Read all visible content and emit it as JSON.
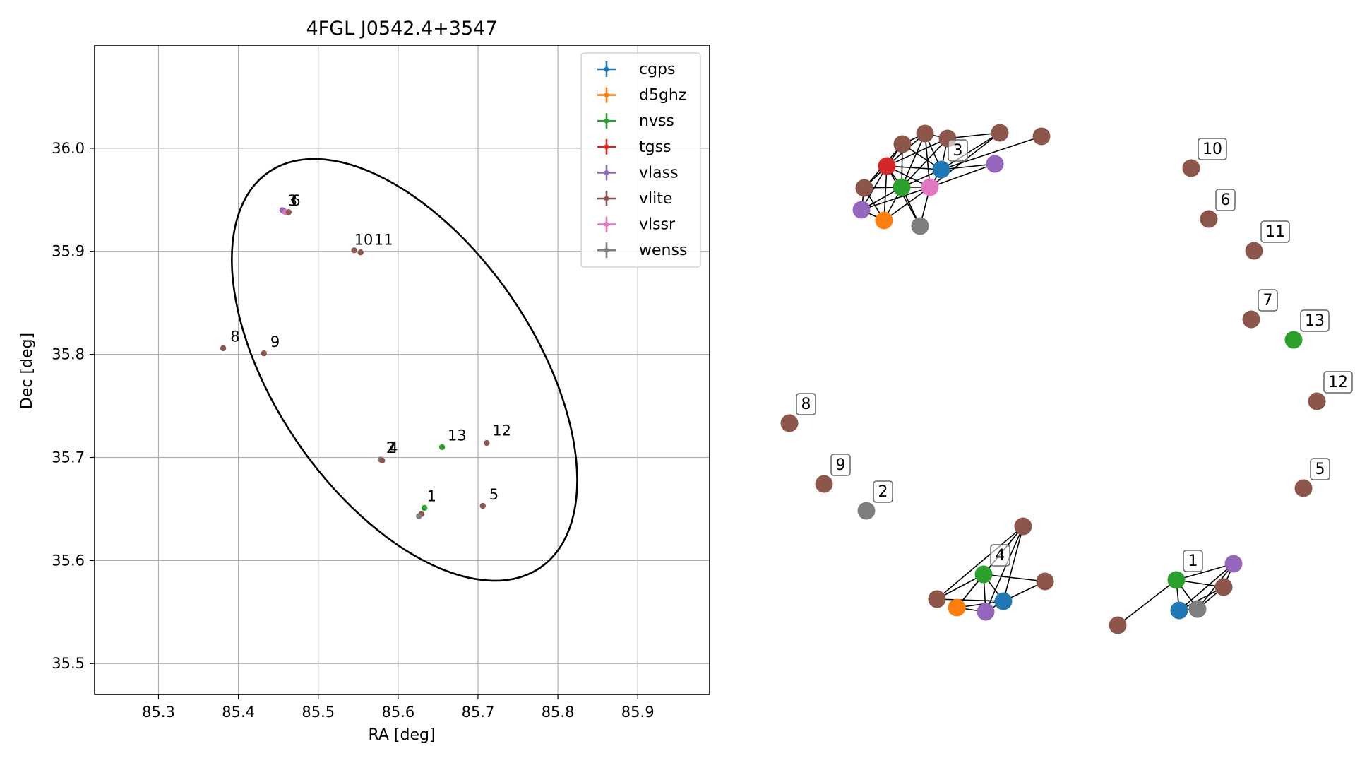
{
  "chart_data": [
    {
      "type": "scatter",
      "title": "4FGL J0542.4+3547",
      "xlabel": "RA [deg]",
      "ylabel": "Dec [deg]",
      "xlim": [
        85.22,
        85.99
      ],
      "ylim": [
        35.47,
        36.1
      ],
      "xticks": [
        "85.3",
        "85.4",
        "85.5",
        "85.6",
        "85.7",
        "85.8",
        "85.9"
      ],
      "yticks": [
        "35.5",
        "35.6",
        "35.7",
        "35.8",
        "35.9",
        "36.0"
      ],
      "grid": true,
      "legend_position": "top-right",
      "legend": [
        {
          "label": "cgps",
          "color": "#1f77b4"
        },
        {
          "label": "d5ghz",
          "color": "#ff7f0e"
        },
        {
          "label": "nvss",
          "color": "#2ca02c"
        },
        {
          "label": "tgss",
          "color": "#d62728"
        },
        {
          "label": "vlass",
          "color": "#9467bd"
        },
        {
          "label": "vlite",
          "color": "#8c564b"
        },
        {
          "label": "vlssr",
          "color": "#e377c2"
        },
        {
          "label": "wenss",
          "color": "#7f7f7f"
        }
      ],
      "ellipse": {
        "center": [
          85.608,
          35.785
        ],
        "semi_axes": [
          0.26,
          0.145
        ],
        "angle_deg": -42
      },
      "points": [
        {
          "x": 85.457,
          "y": 35.939,
          "c": "#8c564b"
        },
        {
          "x": 85.455,
          "y": 35.94,
          "c": "#9467bd"
        },
        {
          "x": 85.459,
          "y": 35.938,
          "c": "#e377c2"
        },
        {
          "x": 85.463,
          "y": 35.938,
          "c": "#8c564b"
        },
        {
          "x": 85.545,
          "y": 35.901,
          "c": "#8c564b"
        },
        {
          "x": 85.553,
          "y": 35.899,
          "c": "#8c564b"
        },
        {
          "x": 85.381,
          "y": 35.806,
          "c": "#8c564b"
        },
        {
          "x": 85.432,
          "y": 35.801,
          "c": "#8c564b"
        },
        {
          "x": 85.578,
          "y": 35.698,
          "c": "#7f7f7f"
        },
        {
          "x": 85.58,
          "y": 35.697,
          "c": "#8c564b"
        },
        {
          "x": 85.655,
          "y": 35.71,
          "c": "#2ca02c"
        },
        {
          "x": 85.711,
          "y": 35.714,
          "c": "#8c564b"
        },
        {
          "x": 85.633,
          "y": 35.651,
          "c": "#2ca02c"
        },
        {
          "x": 85.629,
          "y": 35.645,
          "c": "#8c564b"
        },
        {
          "x": 85.626,
          "y": 35.643,
          "c": "#7f7f7f"
        },
        {
          "x": 85.706,
          "y": 35.653,
          "c": "#8c564b"
        }
      ],
      "labels": [
        {
          "text": "3",
          "x": 85.462,
          "y": 35.943
        },
        {
          "text": "6",
          "x": 85.466,
          "y": 35.943
        },
        {
          "text": "10",
          "x": 85.545,
          "y": 35.905
        },
        {
          "text": "11",
          "x": 85.57,
          "y": 35.905
        },
        {
          "text": "8",
          "x": 85.39,
          "y": 35.811
        },
        {
          "text": "9",
          "x": 85.44,
          "y": 35.806
        },
        {
          "text": "2",
          "x": 85.585,
          "y": 35.703
        },
        {
          "text": "4",
          "x": 85.588,
          "y": 35.703
        },
        {
          "text": "13",
          "x": 85.662,
          "y": 35.715
        },
        {
          "text": "12",
          "x": 85.718,
          "y": 35.72
        },
        {
          "text": "1",
          "x": 85.636,
          "y": 35.656
        },
        {
          "text": "5",
          "x": 85.714,
          "y": 35.658
        }
      ]
    },
    {
      "type": "network",
      "nodes": [
        {
          "id": "a1",
          "c": "#8c564b"
        },
        {
          "id": "a2",
          "c": "#8c564b"
        },
        {
          "id": "a3",
          "c": "#8c564b"
        },
        {
          "id": "a4",
          "c": "#8c564b"
        },
        {
          "id": "a5",
          "c": "#8c564b"
        },
        {
          "id": "a6",
          "c": "#d62728"
        },
        {
          "id": "a7",
          "c": "#1f77b4",
          "label": "3"
        },
        {
          "id": "a8",
          "c": "#9467bd"
        },
        {
          "id": "a9",
          "c": "#8c564b"
        },
        {
          "id": "a10",
          "c": "#2ca02c"
        },
        {
          "id": "a11",
          "c": "#e377c2"
        },
        {
          "id": "a12",
          "c": "#9467bd"
        },
        {
          "id": "a13",
          "c": "#ff7f0e"
        },
        {
          "id": "a14",
          "c": "#7f7f7f"
        },
        {
          "id": "n10",
          "c": "#8c564b",
          "label": "10"
        },
        {
          "id": "n6",
          "c": "#8c564b",
          "label": "6"
        },
        {
          "id": "n11",
          "c": "#8c564b",
          "label": "11"
        },
        {
          "id": "n7",
          "c": "#8c564b",
          "label": "7"
        },
        {
          "id": "n13",
          "c": "#2ca02c",
          "label": "13"
        },
        {
          "id": "n12",
          "c": "#8c564b",
          "label": "12"
        },
        {
          "id": "n5",
          "c": "#8c564b",
          "label": "5"
        },
        {
          "id": "n8",
          "c": "#8c564b",
          "label": "8"
        },
        {
          "id": "n9",
          "c": "#8c564b",
          "label": "9"
        },
        {
          "id": "n2",
          "c": "#7f7f7f",
          "label": "2"
        },
        {
          "id": "b1",
          "c": "#8c564b"
        },
        {
          "id": "b2",
          "c": "#2ca02c",
          "label": "4"
        },
        {
          "id": "b3",
          "c": "#8c564b"
        },
        {
          "id": "b4",
          "c": "#8c564b"
        },
        {
          "id": "b5",
          "c": "#ff7f0e"
        },
        {
          "id": "b6",
          "c": "#1f77b4"
        },
        {
          "id": "b7",
          "c": "#9467bd"
        },
        {
          "id": "c1",
          "c": "#8c564b"
        },
        {
          "id": "c2",
          "c": "#2ca02c",
          "label": "1"
        },
        {
          "id": "c3",
          "c": "#9467bd"
        },
        {
          "id": "c4",
          "c": "#8c564b"
        },
        {
          "id": "c5",
          "c": "#1f77b4"
        },
        {
          "id": "c6",
          "c": "#7f7f7f"
        }
      ],
      "edges": [
        [
          "a6",
          "a1"
        ],
        [
          "a6",
          "a2"
        ],
        [
          "a6",
          "a3"
        ],
        [
          "a6",
          "a7"
        ],
        [
          "a6",
          "a10"
        ],
        [
          "a6",
          "a11"
        ],
        [
          "a6",
          "a5"
        ],
        [
          "a6",
          "a13"
        ],
        [
          "a6",
          "a14"
        ],
        [
          "a6",
          "a12"
        ],
        [
          "a10",
          "a1"
        ],
        [
          "a10",
          "a2"
        ],
        [
          "a10",
          "a3"
        ],
        [
          "a10",
          "a7"
        ],
        [
          "a10",
          "a11"
        ],
        [
          "a10",
          "a5"
        ],
        [
          "a10",
          "a12"
        ],
        [
          "a10",
          "a13"
        ],
        [
          "a10",
          "a14"
        ],
        [
          "a7",
          "a2"
        ],
        [
          "a7",
          "a3"
        ],
        [
          "a7",
          "a4"
        ],
        [
          "a7",
          "a8"
        ],
        [
          "a7",
          "a9"
        ],
        [
          "a7",
          "a11"
        ],
        [
          "a7",
          "a1"
        ],
        [
          "a11",
          "a4"
        ],
        [
          "a11",
          "a14"
        ],
        [
          "a11",
          "a12"
        ],
        [
          "a11",
          "a13"
        ],
        [
          "a11",
          "a8"
        ],
        [
          "a11",
          "a2"
        ],
        [
          "a1",
          "a2"
        ],
        [
          "a2",
          "a3"
        ],
        [
          "a3",
          "a4"
        ],
        [
          "a5",
          "a12"
        ],
        [
          "a5",
          "a13"
        ],
        [
          "a12",
          "a13"
        ],
        [
          "a1",
          "a5"
        ],
        [
          "b1",
          "b2"
        ],
        [
          "b1",
          "b3"
        ],
        [
          "b1",
          "b5"
        ],
        [
          "b1",
          "b6"
        ],
        [
          "b1",
          "b7"
        ],
        [
          "b2",
          "b3"
        ],
        [
          "b2",
          "b4"
        ],
        [
          "b2",
          "b5"
        ],
        [
          "b2",
          "b6"
        ],
        [
          "b2",
          "b7"
        ],
        [
          "b3",
          "b6"
        ],
        [
          "b4",
          "b6"
        ],
        [
          "b5",
          "b6"
        ],
        [
          "b5",
          "b7"
        ],
        [
          "b6",
          "b7"
        ],
        [
          "c1",
          "c2"
        ],
        [
          "c2",
          "c3"
        ],
        [
          "c2",
          "c4"
        ],
        [
          "c2",
          "c5"
        ],
        [
          "c2",
          "c6"
        ],
        [
          "c3",
          "c4"
        ],
        [
          "c3",
          "c5"
        ],
        [
          "c3",
          "c6"
        ],
        [
          "c4",
          "c5"
        ],
        [
          "c4",
          "c6"
        ],
        [
          "c5",
          "c6"
        ]
      ]
    }
  ]
}
